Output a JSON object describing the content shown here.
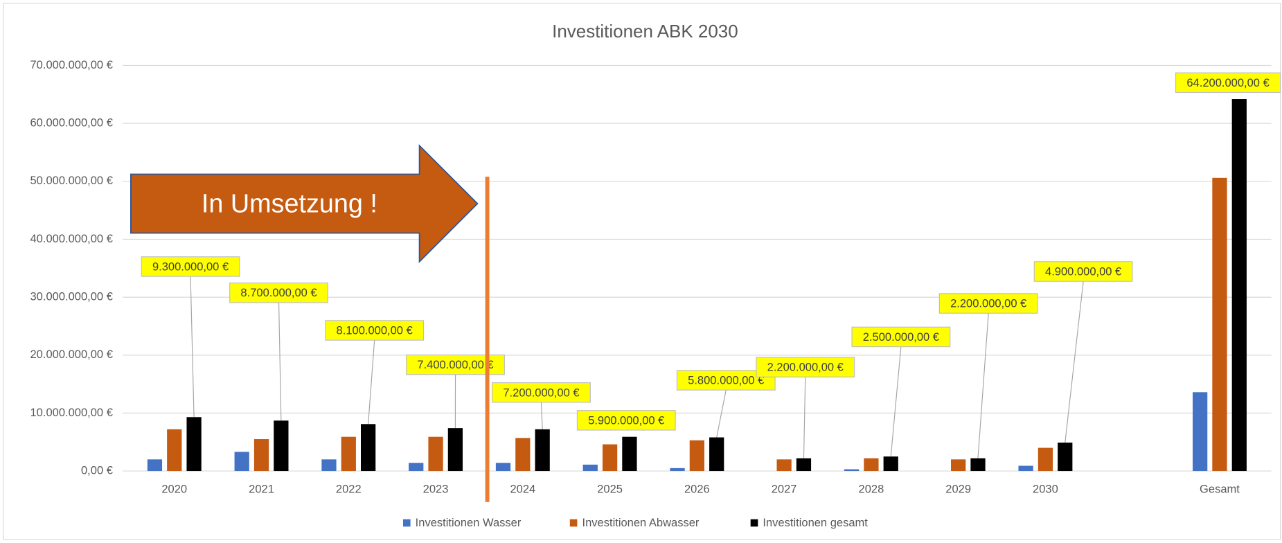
{
  "chart_data": {
    "type": "bar",
    "title": "Investitionen ABK 2030",
    "annotation": "In Umsetzung !",
    "categories": [
      "2020",
      "2021",
      "2022",
      "2023",
      "2024",
      "2025",
      "2026",
      "2027",
      "2028",
      "2029",
      "2030",
      null,
      "Gesamt"
    ],
    "series": [
      {
        "name": "Investitionen Wasser",
        "color": "#4472c4",
        "values": [
          2000000,
          3300000,
          2000000,
          1400000,
          1400000,
          1100000,
          500000,
          0,
          300000,
          0,
          900000,
          null,
          13600000
        ]
      },
      {
        "name": "Investitionen Abwasser",
        "color": "#c55a11",
        "values": [
          7200000,
          5500000,
          5900000,
          5900000,
          5700000,
          4600000,
          5300000,
          2000000,
          2200000,
          2000000,
          4000000,
          null,
          50600000
        ]
      },
      {
        "name": "Investitionen gesamt",
        "color": "#000000",
        "values": [
          9300000,
          8700000,
          8100000,
          7400000,
          7200000,
          5900000,
          5800000,
          2200000,
          2500000,
          2200000,
          4900000,
          null,
          64200000
        ],
        "value_labels": [
          "9.300.000,00 €",
          "8.700.000,00 €",
          "8.100.000,00 €",
          "7.400.000,00 €",
          "7.200.000,00 €",
          "5.900.000,00 €",
          "5.800.000,00 €",
          "2.200.000,00 €",
          "2.500.000,00 €",
          "2.200.000,00 €",
          "4.900.000,00 €",
          null,
          "64.200.000,00 €"
        ]
      }
    ],
    "ylim": [
      0,
      70000000
    ],
    "yticks": [
      {
        "value": 0,
        "label": "0,00 €"
      },
      {
        "value": 10000000,
        "label": "10.000.000,00 €"
      },
      {
        "value": 20000000,
        "label": "20.000.000,00 €"
      },
      {
        "value": 30000000,
        "label": "30.000.000,00 €"
      },
      {
        "value": 40000000,
        "label": "40.000.000,00 €"
      },
      {
        "value": 50000000,
        "label": "50.000.000,00 €"
      },
      {
        "value": 60000000,
        "label": "60.000.000,00 €"
      },
      {
        "value": 70000000,
        "label": "70.000.000,00 €"
      }
    ],
    "grid": true,
    "legend": "bottom"
  }
}
